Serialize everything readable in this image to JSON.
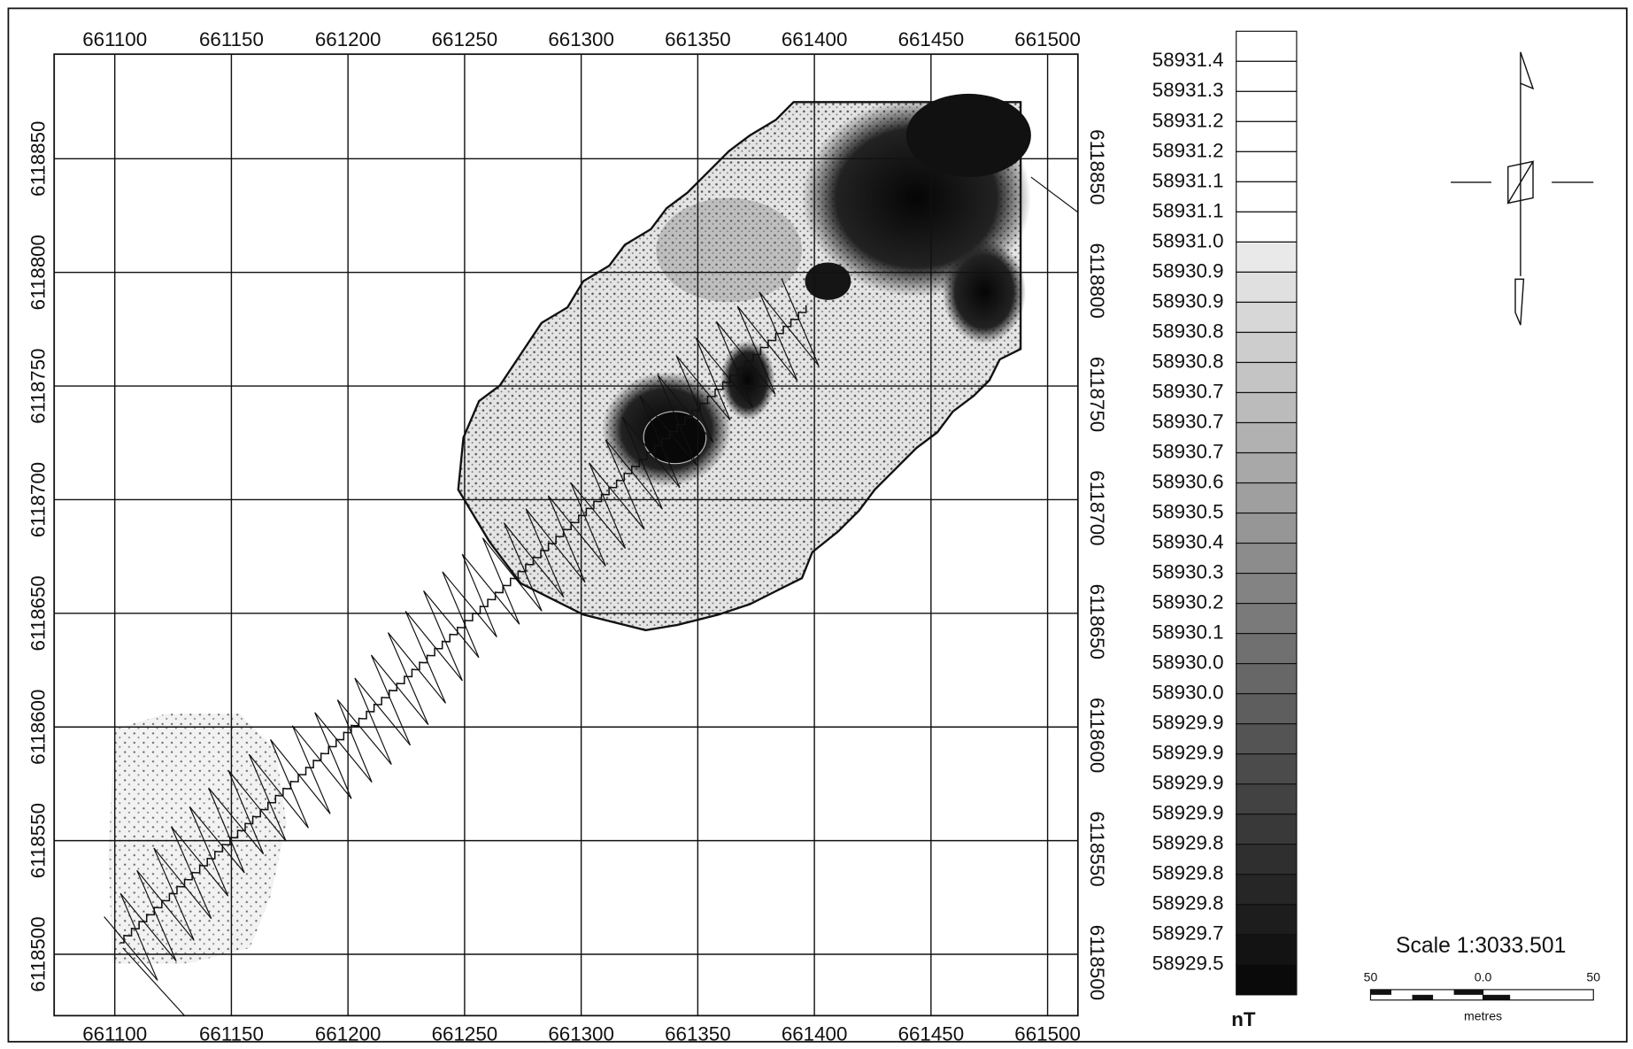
{
  "map": {
    "xlim": [
      661074,
      661513
    ],
    "ylim": [
      6118473,
      6118896
    ],
    "xticks": [
      661100,
      661150,
      661200,
      661250,
      661300,
      661350,
      661400,
      661450,
      661500
    ],
    "yticks": [
      6118500,
      6118550,
      6118600,
      6118650,
      6118700,
      6118750,
      6118800,
      6118850
    ],
    "legend": {
      "unit": "nT",
      "labels": [
        "58931.4",
        "58931.3",
        "58931.2",
        "58931.2",
        "58931.1",
        "58931.1",
        "58931.0",
        "58930.9",
        "58930.9",
        "58930.8",
        "58930.8",
        "58930.7",
        "58930.7",
        "58930.7",
        "58930.6",
        "58930.5",
        "58930.4",
        "58930.3",
        "58930.2",
        "58930.1",
        "58930.0",
        "58930.0",
        "58929.9",
        "58929.9",
        "58929.9",
        "58929.9",
        "58929.8",
        "58929.8",
        "58929.8",
        "58929.7",
        "58929.5"
      ]
    },
    "scale": {
      "title": "Scale 1:3033.501",
      "bar_labels": [
        "50",
        "0.0",
        "50"
      ],
      "unit": "metres"
    }
  }
}
